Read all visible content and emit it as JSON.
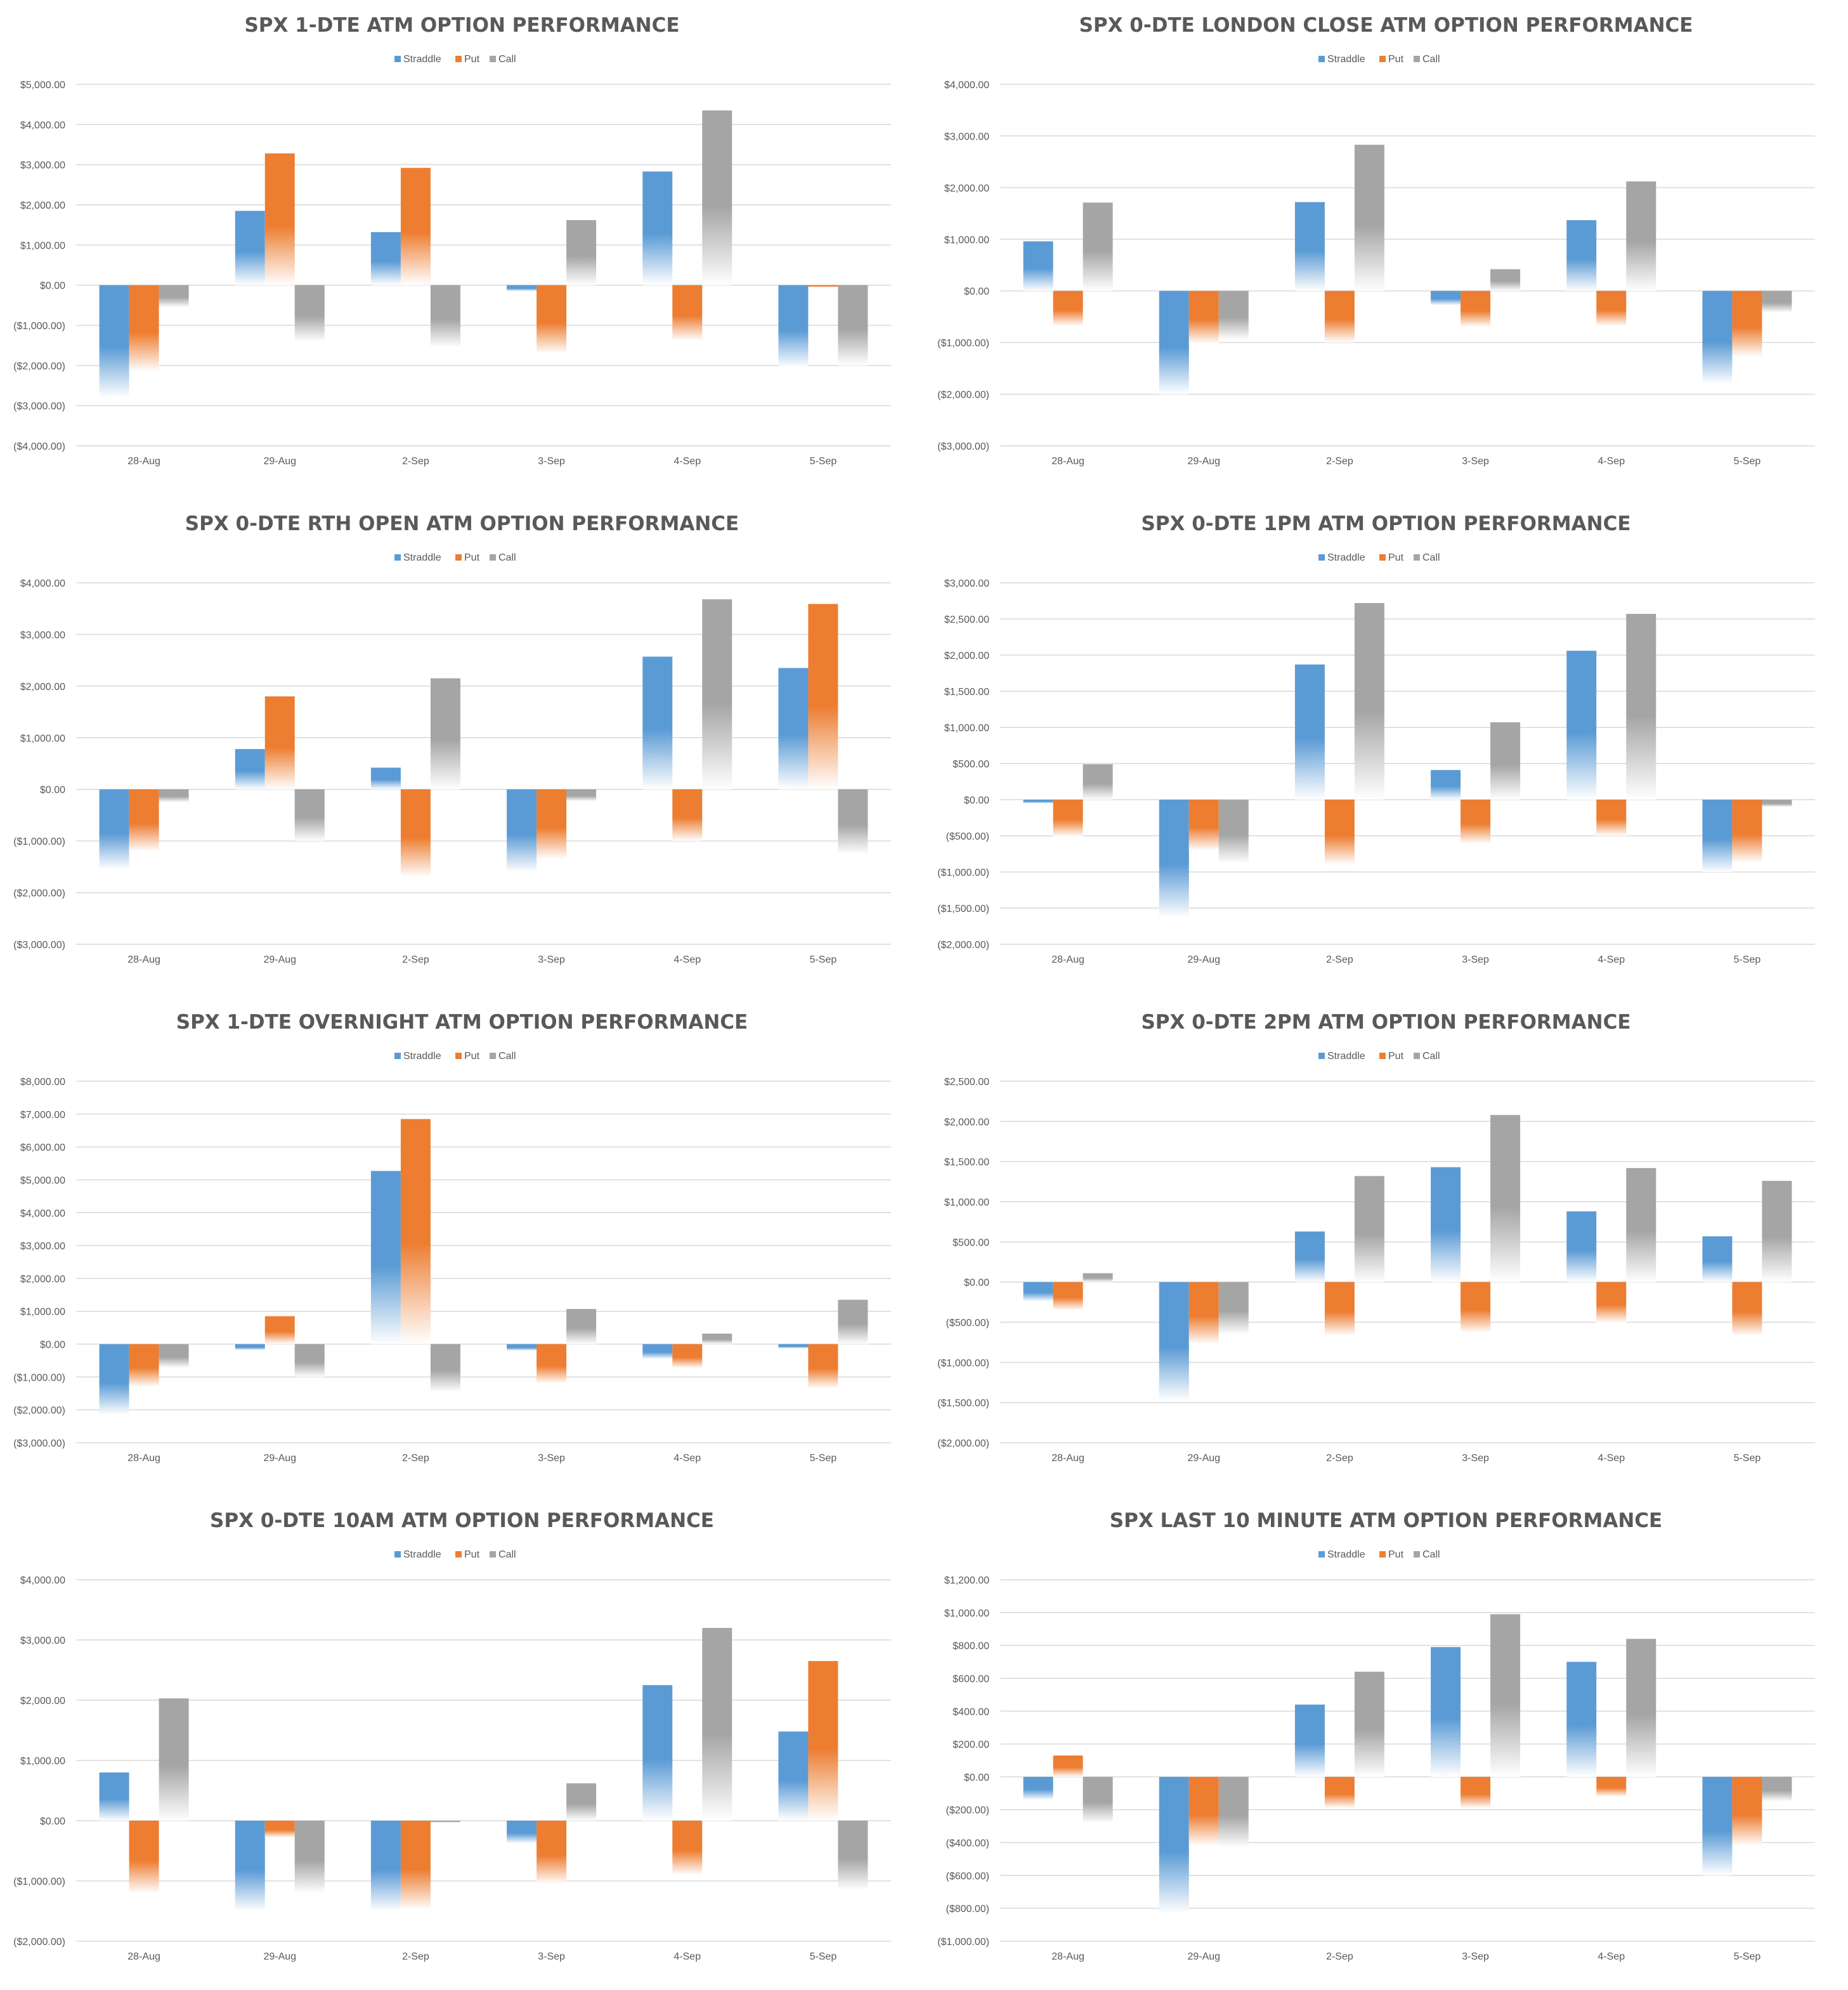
{
  "legend": {
    "straddle": "Straddle",
    "put": "Put",
    "call": "Call"
  },
  "colors": {
    "straddle": "#5B9BD5",
    "put": "#ED7D31",
    "call": "#A5A5A5",
    "negative_label": "#FF0000",
    "label": "#595959",
    "grid": "#D9D9D9"
  },
  "chart_data": [
    {
      "type": "bar",
      "title": "SPX 1-DTE ATM OPTION PERFORMANCE",
      "categories": [
        "28-Aug",
        "29-Aug",
        "2-Sep",
        "3-Sep",
        "4-Sep",
        "5-Sep"
      ],
      "ylim": [
        -4000,
        5000
      ],
      "yticks": [
        -4000,
        -3000,
        -2000,
        -1000,
        0,
        1000,
        2000,
        3000,
        4000,
        5000
      ],
      "ytick_labels": [
        "($4,000.00)",
        "($3,000.00)",
        "($2,000.00)",
        "($1,000.00)",
        "$0.00",
        "$1,000.00",
        "$2,000.00",
        "$3,000.00",
        "$4,000.00",
        "$5,000.00"
      ],
      "series": [
        {
          "name": "Straddle",
          "values": [
            -2800,
            1850,
            1320,
            -150,
            2830,
            -2050
          ]
        },
        {
          "name": "Put",
          "values": [
            -2150,
            3280,
            2920,
            -1700,
            -1380,
            -50
          ]
        },
        {
          "name": "Call",
          "values": [
            -550,
            -1400,
            -1550,
            1620,
            4350,
            -2000
          ]
        }
      ]
    },
    {
      "type": "bar",
      "title": "SPX 0-DTE  LONDON CLOSE ATM OPTION PERFORMANCE",
      "categories": [
        "28-Aug",
        "29-Aug",
        "2-Sep",
        "3-Sep",
        "4-Sep",
        "5-Sep"
      ],
      "ylim": [
        -3000,
        4000
      ],
      "yticks": [
        -3000,
        -2000,
        -1000,
        0,
        1000,
        2000,
        3000,
        4000
      ],
      "ytick_labels": [
        "($3,000.00)",
        "($2,000.00)",
        "($1,000.00)",
        "$0.00",
        "$1,000.00",
        "$2,000.00",
        "$3,000.00",
        "$4,000.00"
      ],
      "series": [
        {
          "name": "Straddle",
          "values": [
            960,
            -2000,
            1720,
            -280,
            1370,
            -1800
          ]
        },
        {
          "name": "Put",
          "values": [
            -680,
            -1020,
            -1000,
            -700,
            -680,
            -1280
          ]
        },
        {
          "name": "Call",
          "values": [
            1710,
            -940,
            2830,
            420,
            2120,
            -420
          ]
        }
      ]
    },
    {
      "type": "bar",
      "title": "SPX 0-DTE RTH OPEN ATM OPTION PERFORMANCE",
      "categories": [
        "28-Aug",
        "29-Aug",
        "2-Sep",
        "3-Sep",
        "4-Sep",
        "5-Sep"
      ],
      "ylim": [
        -3000,
        4000
      ],
      "yticks": [
        -3000,
        -2000,
        -1000,
        0,
        1000,
        2000,
        3000,
        4000
      ],
      "ytick_labels": [
        "($3,000.00)",
        "($2,000.00)",
        "($1,000.00)",
        "$0.00",
        "$1,000.00",
        "$2,000.00",
        "$3,000.00",
        "$4,000.00"
      ],
      "series": [
        {
          "name": "Straddle",
          "values": [
            -1550,
            780,
            420,
            -1600,
            2570,
            2350
          ]
        },
        {
          "name": "Put",
          "values": [
            -1200,
            1800,
            -1700,
            -1350,
            -1000,
            3590
          ]
        },
        {
          "name": "Call",
          "values": [
            -250,
            -1000,
            2150,
            -230,
            3680,
            -1250
          ]
        }
      ]
    },
    {
      "type": "bar",
      "title": "SPX 0-DTE 1PM ATM OPTION PERFORMANCE",
      "categories": [
        "28-Aug",
        "29-Aug",
        "2-Sep",
        "3-Sep",
        "4-Sep",
        "5-Sep"
      ],
      "ylim": [
        -2000,
        3000
      ],
      "yticks": [
        -2000,
        -1500,
        -1000,
        -500,
        0,
        500,
        1000,
        1500,
        2000,
        2500,
        3000
      ],
      "ytick_labels": [
        "($2,000.00)",
        "($1,500.00)",
        "($1,000.00)",
        "($500.00)",
        "$0.00",
        "$500.00",
        "$1,000.00",
        "$1,500.00",
        "$2,000.00",
        "$2,500.00",
        "$3,000.00"
      ],
      "series": [
        {
          "name": "Straddle",
          "values": [
            -50,
            -1630,
            1870,
            410,
            2060,
            -1000
          ]
        },
        {
          "name": "Put",
          "values": [
            -510,
            -700,
            -900,
            -610,
            -500,
            -870
          ]
        },
        {
          "name": "Call",
          "values": [
            490,
            -880,
            2720,
            1070,
            2570,
            -100
          ]
        }
      ]
    },
    {
      "type": "bar",
      "title": "SPX 1-DTE OVERNIGHT ATM OPTION PERFORMANCE",
      "categories": [
        "28-Aug",
        "29-Aug",
        "2-Sep",
        "3-Sep",
        "4-Sep",
        "5-Sep"
      ],
      "ylim": [
        -3000,
        8000
      ],
      "yticks": [
        -3000,
        -2000,
        -1000,
        0,
        1000,
        2000,
        3000,
        4000,
        5000,
        6000,
        7000,
        8000
      ],
      "ytick_labels": [
        "($3,000.00)",
        "($2,000.00)",
        "($1,000.00)",
        "$0.00",
        "$1,000.00",
        "$2,000.00",
        "$3,000.00",
        "$4,000.00",
        "$5,000.00",
        "$6,000.00",
        "$7,000.00",
        "$8,000.00"
      ],
      "series": [
        {
          "name": "Straddle",
          "values": [
            -2150,
            -180,
            5270,
            -200,
            -450,
            -130
          ]
        },
        {
          "name": "Put",
          "values": [
            -1300,
            850,
            6850,
            -1200,
            -730,
            -1350
          ]
        },
        {
          "name": "Call",
          "values": [
            -720,
            -1000,
            -1450,
            1070,
            320,
            1350
          ]
        }
      ]
    },
    {
      "type": "bar",
      "title": "SPX 0-DTE 2PM ATM OPTION PERFORMANCE",
      "categories": [
        "28-Aug",
        "29-Aug",
        "2-Sep",
        "3-Sep",
        "4-Sep",
        "5-Sep"
      ],
      "ylim": [
        -2000,
        2500
      ],
      "yticks": [
        -2000,
        -1500,
        -1000,
        -500,
        0,
        500,
        1000,
        1500,
        2000,
        2500
      ],
      "ytick_labels": [
        "($2,000.00)",
        "($1,500.00)",
        "($1,000.00)",
        "($500.00)",
        "$0.00",
        "$500.00",
        "$1,000.00",
        "$1,500.00",
        "$2,000.00",
        "$2,500.00"
      ],
      "series": [
        {
          "name": "Straddle",
          "values": [
            -240,
            -1480,
            630,
            1430,
            880,
            570
          ]
        },
        {
          "name": "Put",
          "values": [
            -350,
            -770,
            -670,
            -630,
            -510,
            -670
          ]
        },
        {
          "name": "Call",
          "values": [
            110,
            -650,
            1320,
            2080,
            1420,
            1260
          ]
        }
      ]
    },
    {
      "type": "bar",
      "title": "SPX 0-DTE 10AM ATM OPTION PERFORMANCE",
      "categories": [
        "28-Aug",
        "29-Aug",
        "2-Sep",
        "3-Sep",
        "4-Sep",
        "5-Sep"
      ],
      "ylim": [
        -2000,
        4000
      ],
      "yticks": [
        -2000,
        -1000,
        0,
        1000,
        2000,
        3000,
        4000
      ],
      "ytick_labels": [
        "($2,000.00)",
        "($1,000.00)",
        "$0.00",
        "$1,000.00",
        "$2,000.00",
        "$3,000.00",
        "$4,000.00"
      ],
      "series": [
        {
          "name": "Straddle",
          "values": [
            800,
            -1500,
            -1500,
            -380,
            2250,
            1480
          ]
        },
        {
          "name": "Put",
          "values": [
            -1200,
            -280,
            -1480,
            -1050,
            -900,
            2650
          ]
        },
        {
          "name": "Call",
          "values": [
            2030,
            -1200,
            -30,
            620,
            3200,
            -1150
          ]
        }
      ]
    },
    {
      "type": "bar",
      "title": "SPX LAST 10 MINUTE ATM OPTION PERFORMANCE",
      "categories": [
        "28-Aug",
        "29-Aug",
        "2-Sep",
        "3-Sep",
        "4-Sep",
        "5-Sep"
      ],
      "ylim": [
        -1000,
        1200
      ],
      "yticks": [
        -1000,
        -800,
        -600,
        -400,
        -200,
        0,
        200,
        400,
        600,
        800,
        1000,
        1200
      ],
      "ytick_labels": [
        "($1,000.00)",
        "($800.00)",
        "($600.00)",
        "($400.00)",
        "($200.00)",
        "$0.00",
        "$200.00",
        "$400.00",
        "$600.00",
        "$800.00",
        "$1,000.00",
        "$1,200.00"
      ],
      "series": [
        {
          "name": "Straddle",
          "values": [
            -140,
            -830,
            440,
            790,
            700,
            -600
          ]
        },
        {
          "name": "Put",
          "values": [
            130,
            -420,
            -190,
            -190,
            -120,
            -420
          ]
        },
        {
          "name": "Call",
          "values": [
            -280,
            -430,
            640,
            990,
            840,
            -150
          ]
        }
      ]
    }
  ]
}
